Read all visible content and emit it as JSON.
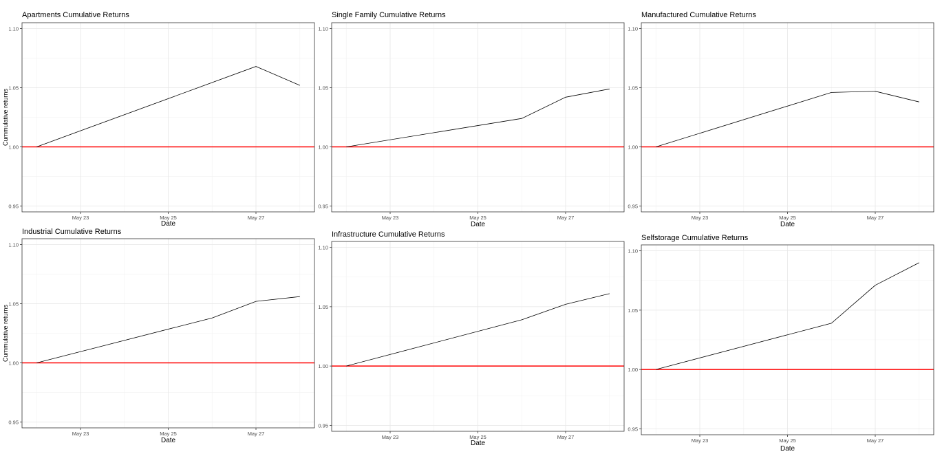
{
  "chart_data": [
    {
      "type": "line",
      "title": "Apartments Cumulative Returns",
      "xlabel": "Date",
      "ylabel": "Cummulative returns",
      "x": [
        "2018-05-22",
        "2018-05-27",
        "2018-05-28"
      ],
      "series": [
        {
          "values": [
            1.0,
            1.068,
            1.052
          ]
        }
      ],
      "reference_line": {
        "y": 1.0,
        "color": "#ff0000"
      },
      "ylim": [
        0.945,
        1.105
      ],
      "yticks": [
        "0.95",
        "1.00",
        "1.05",
        "1.10"
      ],
      "xticks": [
        {
          "x": "2018-05-23",
          "label": "May 23"
        },
        {
          "x": "2018-05-25",
          "label": "May 25"
        },
        {
          "x": "2018-05-27",
          "label": "May 27"
        }
      ],
      "grid": true
    },
    {
      "type": "line",
      "title": "Single Family Cumulative Returns",
      "xlabel": "Date",
      "ylabel": "",
      "x": [
        "2018-05-22",
        "2018-05-26",
        "2018-05-27",
        "2018-05-28"
      ],
      "series": [
        {
          "values": [
            1.0,
            1.024,
            1.042,
            1.049
          ]
        }
      ],
      "reference_line": {
        "y": 1.0,
        "color": "#ff0000"
      },
      "ylim": [
        0.945,
        1.105
      ],
      "yticks": [
        "0.95",
        "1.00",
        "1.05",
        "1.10"
      ],
      "xticks": [
        {
          "x": "2018-05-23",
          "label": "May 23"
        },
        {
          "x": "2018-05-25",
          "label": "May 25"
        },
        {
          "x": "2018-05-27",
          "label": "May 27"
        }
      ],
      "grid": true
    },
    {
      "type": "line",
      "title": "Manufactured Cumulative Returns",
      "xlabel": "Date",
      "ylabel": "",
      "x": [
        "2018-05-22",
        "2018-05-26",
        "2018-05-27",
        "2018-05-28"
      ],
      "series": [
        {
          "values": [
            1.0,
            1.046,
            1.047,
            1.038
          ]
        }
      ],
      "reference_line": {
        "y": 1.0,
        "color": "#ff0000"
      },
      "ylim": [
        0.945,
        1.105
      ],
      "yticks": [
        "0.95",
        "1.00",
        "1.05",
        "1.10"
      ],
      "xticks": [
        {
          "x": "2018-05-23",
          "label": "May 23"
        },
        {
          "x": "2018-05-25",
          "label": "May 25"
        },
        {
          "x": "2018-05-27",
          "label": "May 27"
        }
      ],
      "grid": true
    },
    {
      "type": "line",
      "title": "Industrial Cumulative Returns",
      "xlabel": "Date",
      "ylabel": "Cummulative returns",
      "x": [
        "2018-05-22",
        "2018-05-26",
        "2018-05-27",
        "2018-05-28"
      ],
      "series": [
        {
          "values": [
            1.0,
            1.038,
            1.052,
            1.056
          ]
        }
      ],
      "reference_line": {
        "y": 1.0,
        "color": "#ff0000"
      },
      "ylim": [
        0.945,
        1.105
      ],
      "yticks": [
        "0.95",
        "1.00",
        "1.05",
        "1.10"
      ],
      "xticks": [
        {
          "x": "2018-05-23",
          "label": "May 23"
        },
        {
          "x": "2018-05-25",
          "label": "May 25"
        },
        {
          "x": "2018-05-27",
          "label": "May 27"
        }
      ],
      "grid": true
    },
    {
      "type": "line",
      "title": "Infrastructure Cumulative Returns",
      "xlabel": "Date",
      "ylabel": "",
      "x": [
        "2018-05-22",
        "2018-05-26",
        "2018-05-27",
        "2018-05-28"
      ],
      "series": [
        {
          "values": [
            1.0,
            1.039,
            1.052,
            1.061
          ]
        }
      ],
      "reference_line": {
        "y": 1.0,
        "color": "#ff0000"
      },
      "ylim": [
        0.945,
        1.105
      ],
      "yticks": [
        "0.95",
        "1.00",
        "1.05",
        "1.10"
      ],
      "xticks": [
        {
          "x": "2018-05-23",
          "label": "May 23"
        },
        {
          "x": "2018-05-25",
          "label": "May 25"
        },
        {
          "x": "2018-05-27",
          "label": "May 27"
        }
      ],
      "grid": true
    },
    {
      "type": "line",
      "title": "Selfstorage Cumulative Returns",
      "xlabel": "Date",
      "ylabel": "",
      "x": [
        "2018-05-22",
        "2018-05-26",
        "2018-05-27",
        "2018-05-28"
      ],
      "series": [
        {
          "values": [
            1.0,
            1.039,
            1.071,
            1.09
          ]
        }
      ],
      "reference_line": {
        "y": 1.0,
        "color": "#ff0000"
      },
      "ylim": [
        0.945,
        1.105
      ],
      "yticks": [
        "0.95",
        "1.00",
        "1.05",
        "1.10"
      ],
      "xticks": [
        {
          "x": "2018-05-23",
          "label": "May 23"
        },
        {
          "x": "2018-05-25",
          "label": "May 25"
        },
        {
          "x": "2018-05-27",
          "label": "May 27"
        }
      ],
      "grid": true
    }
  ]
}
